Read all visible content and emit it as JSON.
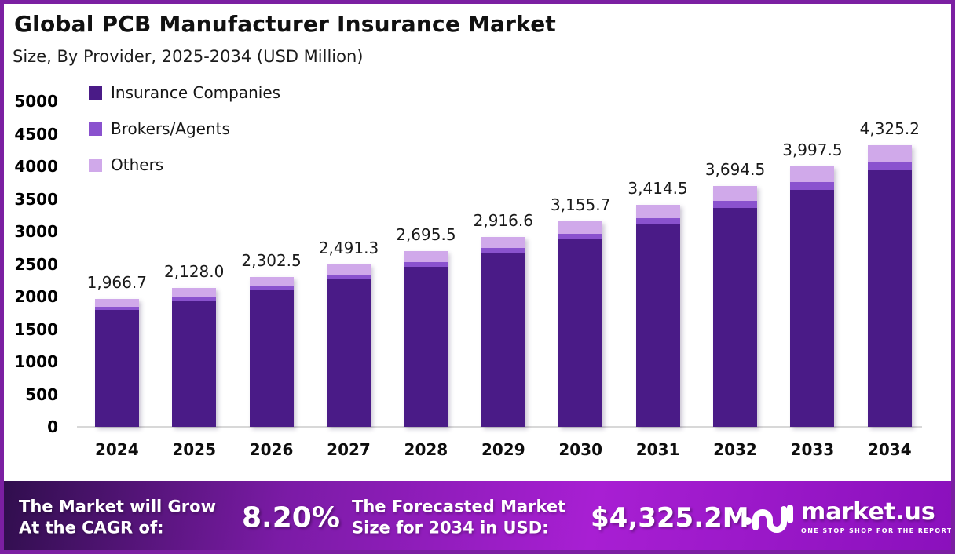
{
  "chart_data": {
    "type": "bar",
    "stacked": true,
    "title": "Global PCB Manufacturer Insurance Market",
    "subtitle": "Size, By Provider, 2025-2034 (USD Million)",
    "xlabel": "",
    "ylabel": "",
    "ylim": [
      0,
      5000
    ],
    "grid": false,
    "legend_position": "top-left",
    "categories": [
      "2024",
      "2025",
      "2026",
      "2027",
      "2028",
      "2029",
      "2030",
      "2031",
      "2032",
      "2033",
      "2034"
    ],
    "totals": [
      1966.7,
      2128.0,
      2302.5,
      2491.3,
      2695.5,
      2916.6,
      3155.7,
      3414.5,
      3694.5,
      3997.5,
      4325.2
    ],
    "total_labels": [
      "1,966.7",
      "2,128.0",
      "2,302.5",
      "2,491.3",
      "2,695.5",
      "2,916.6",
      "3,155.7",
      "3,414.5",
      "3,694.5",
      "3,997.5",
      "4,325.2"
    ],
    "series": [
      {
        "name": "Insurance Companies",
        "color": "#4A1B87",
        "values": [
          1791.7,
          1938.6,
          2097.6,
          2269.6,
          2455.6,
          2657.0,
          2874.8,
          3110.6,
          3365.7,
          3641.7,
          3940.3
        ]
      },
      {
        "name": "Brokers/Agents",
        "color": "#8A52CE",
        "values": [
          57.0,
          61.7,
          66.8,
          72.2,
          78.2,
          84.6,
          91.5,
          99.0,
          107.1,
          115.9,
          125.4
        ]
      },
      {
        "name": "Others",
        "color": "#D0A9EA",
        "values": [
          118.0,
          127.7,
          138.1,
          149.5,
          161.7,
          175.0,
          189.4,
          204.9,
          221.7,
          239.9,
          259.5
        ]
      }
    ],
    "yticks": [
      "5000",
      "4500",
      "4000",
      "3500",
      "3000",
      "2500",
      "2000",
      "1500",
      "1000",
      "500",
      "0"
    ]
  },
  "banner": {
    "cagr_label_line1": "The Market will Grow",
    "cagr_label_line2": "At the CAGR of:",
    "cagr_value": "8.20%",
    "forecast_label_line1": "The Forecasted Market",
    "forecast_label_line2": "Size for 2034 in USD:",
    "forecast_value": "$4,325.2M",
    "logo_text": "market.us",
    "logo_tagline": "ONE STOP SHOP FOR THE REPORTS"
  },
  "colors": {
    "frame_border": "#7B1FA2",
    "banner_gradient_left": "#2F0E4C",
    "banner_gradient_mid": "#A81FD3",
    "banner_gradient_right": "#8A10BC"
  }
}
